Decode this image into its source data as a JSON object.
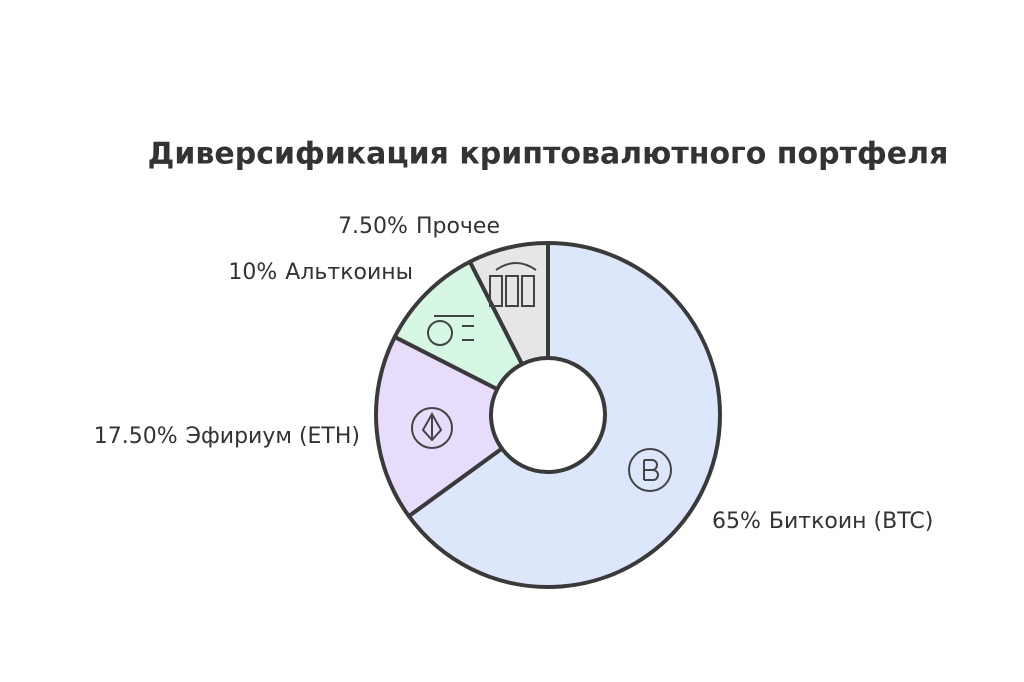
{
  "chart_data": {
    "type": "donut",
    "title": "Диверсификация криптовалютного портфеля",
    "categories": [
      "Биткоин (BTC)",
      "Эфириум (ETH)",
      "Альткоины",
      "Прочее"
    ],
    "values": [
      65,
      17.5,
      10,
      7.5
    ],
    "value_labels": [
      "65%",
      "17.50%",
      "10%",
      "7.50%"
    ],
    "colors": [
      "#dce7fb",
      "#e7ddfa",
      "#d5f7e4",
      "#e6e6e6"
    ]
  }
}
